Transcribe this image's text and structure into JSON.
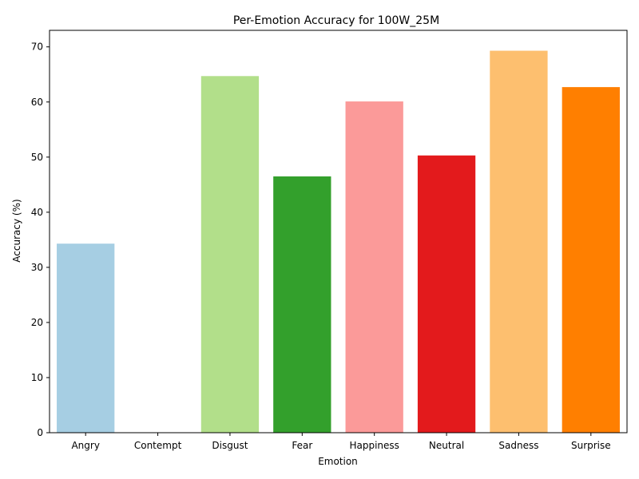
{
  "chart_data": {
    "type": "bar",
    "title": "Per-Emotion Accuracy for 100W_25M",
    "xlabel": "Emotion",
    "ylabel": "Accuracy (%)",
    "categories": [
      "Angry",
      "Contempt",
      "Disgust",
      "Fear",
      "Happiness",
      "Neutral",
      "Sadness",
      "Surprise"
    ],
    "values": [
      34.3,
      0,
      64.7,
      46.5,
      60.1,
      50.3,
      69.3,
      62.7
    ],
    "colors": [
      "#a6cee3",
      "#1f78b4",
      "#b2df8a",
      "#33a02c",
      "#fb9a99",
      "#e31a1c",
      "#fdbf6f",
      "#ff7f00"
    ],
    "ylim": [
      0,
      73
    ],
    "yticks": [
      0,
      10,
      20,
      30,
      40,
      50,
      60,
      70
    ],
    "grid": false,
    "legend": false
  }
}
